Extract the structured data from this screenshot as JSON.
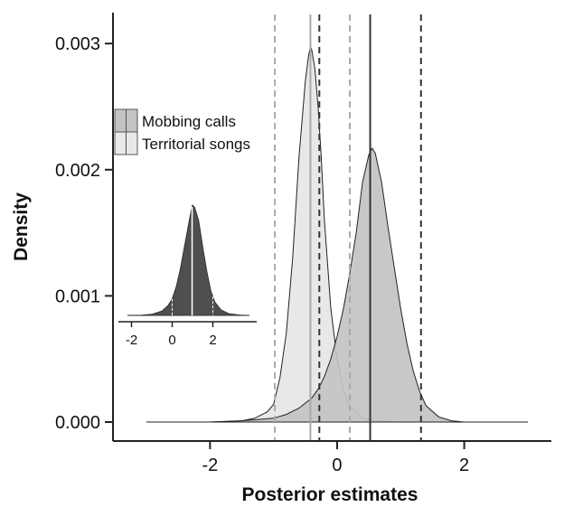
{
  "chart_data": {
    "type": "area",
    "xlabel": "Posterior estimates",
    "ylabel": "Density",
    "xlim": [
      -3.2,
      3.3
    ],
    "ylim": [
      0,
      0.00308
    ],
    "x_ticks": [
      -2,
      0,
      2
    ],
    "x_tick_labels": [
      "-2",
      "0",
      "2"
    ],
    "y_ticks": [
      0,
      0.001,
      0.002,
      0.003
    ],
    "y_tick_labels": [
      "0.000",
      "0.001",
      "0.002",
      "0.003"
    ],
    "legend": {
      "placement": "upper-left",
      "entries": [
        "Mobbing calls",
        "Territorial songs"
      ]
    },
    "colors": {
      "mobbing": "#c3c3c3",
      "territorial": "#e8e8e8",
      "inset": "#4f4f4f"
    },
    "series": [
      {
        "name": "Territorial songs",
        "x": [
          -3.0,
          -2.0,
          -1.5,
          -1.3,
          -1.1,
          -1.0,
          -0.9,
          -0.8,
          -0.7,
          -0.6,
          -0.5,
          -0.45,
          -0.42,
          -0.4,
          -0.35,
          -0.3,
          -0.25,
          -0.2,
          -0.1,
          0.0,
          0.1,
          0.2,
          0.4,
          0.6,
          1.0
        ],
        "values": [
          0.0,
          0.0,
          1e-05,
          3e-05,
          8e-05,
          0.00014,
          0.00035,
          0.0007,
          0.0013,
          0.0021,
          0.0027,
          0.0029,
          0.00298,
          0.00295,
          0.0028,
          0.0025,
          0.0021,
          0.0016,
          0.0009,
          0.0005,
          0.00025,
          0.00012,
          3e-05,
          1e-05,
          0.0
        ],
        "mean": -0.42,
        "ci": [
          -0.98,
          0.2
        ]
      },
      {
        "name": "Mobbing calls",
        "x": [
          -2.0,
          -1.5,
          -1.0,
          -0.8,
          -0.6,
          -0.4,
          -0.3,
          -0.2,
          -0.1,
          0.0,
          0.1,
          0.2,
          0.3,
          0.4,
          0.5,
          0.55,
          0.6,
          0.7,
          0.8,
          0.9,
          1.0,
          1.1,
          1.2,
          1.3,
          1.4,
          1.6,
          1.8,
          2.0,
          2.5,
          3.0
        ],
        "values": [
          0.0,
          1e-05,
          3e-05,
          6e-05,
          0.00011,
          0.00019,
          0.00026,
          0.00036,
          0.0005,
          0.00068,
          0.0009,
          0.00118,
          0.0015,
          0.0019,
          0.00212,
          0.00217,
          0.00213,
          0.0019,
          0.00155,
          0.00122,
          0.0009,
          0.00062,
          0.0004,
          0.00024,
          0.00013,
          4e-05,
          1e-05,
          0.0,
          0.0,
          0.0
        ],
        "mean": 0.52,
        "ci": [
          -0.28,
          1.32
        ]
      }
    ],
    "inset": {
      "type": "area",
      "xlim": [
        -2.2,
        3.8
      ],
      "x_ticks": [
        -2,
        0,
        2
      ],
      "x_tick_labels": [
        "-2",
        "0",
        "2"
      ],
      "x": [
        -2.2,
        -1.5,
        -1.0,
        -0.5,
        -0.2,
        0.0,
        0.2,
        0.4,
        0.6,
        0.8,
        0.9,
        1.0,
        1.1,
        1.3,
        1.5,
        1.7,
        1.9,
        2.1,
        2.4,
        2.8,
        3.3,
        3.8
      ],
      "values": [
        0.0,
        0.002,
        0.01,
        0.04,
        0.09,
        0.15,
        0.26,
        0.42,
        0.62,
        0.82,
        0.92,
        1.0,
        0.98,
        0.86,
        0.62,
        0.4,
        0.22,
        0.12,
        0.05,
        0.015,
        0.003,
        0.0
      ],
      "mean": 0.98,
      "ci": [
        0.0,
        2.0
      ]
    }
  }
}
